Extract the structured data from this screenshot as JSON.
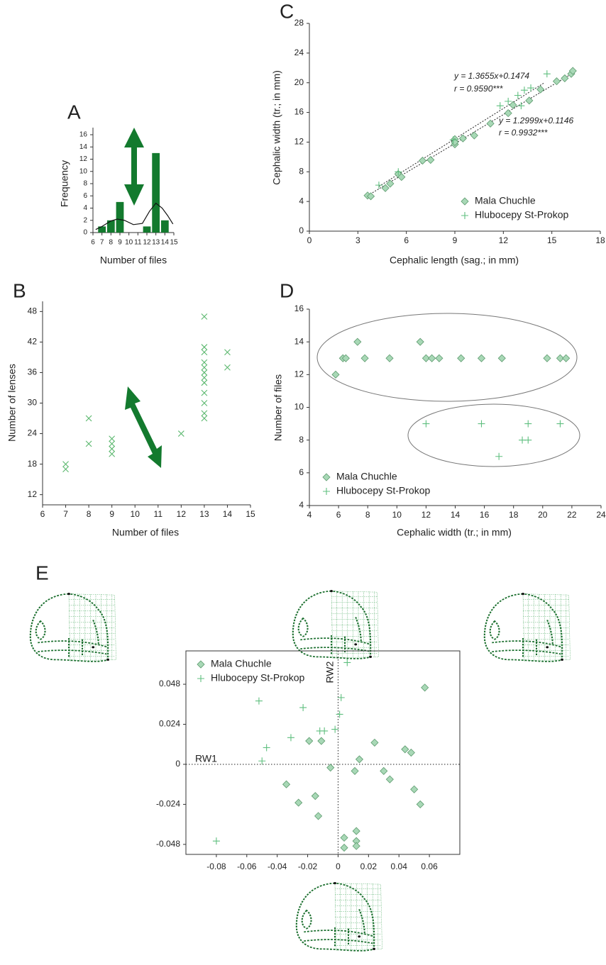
{
  "chart_data": [
    {
      "type": "bar",
      "panel": "A",
      "xlabel": "Number of files",
      "ylabel": "Frequency",
      "x": [
        7,
        8,
        9,
        12,
        13,
        14
      ],
      "values": [
        1,
        2,
        5,
        1,
        13,
        2
      ],
      "color": "#137a2e",
      "curve": {
        "x": [
          6.3,
          7,
          8,
          8.7,
          9.5,
          10.5,
          11.5,
          12.3,
          13,
          13.7,
          14.3,
          14.9
        ],
        "values": [
          0.5,
          1,
          1.9,
          2.2,
          2,
          1.3,
          1.5,
          3.5,
          4.8,
          4,
          2.8,
          1.4
        ],
        "color": "#111111"
      },
      "xlim": [
        6,
        15
      ],
      "xticks": [
        6,
        7,
        8,
        9,
        10,
        11,
        12,
        13,
        14,
        15
      ],
      "ylim": [
        0,
        16
      ],
      "yticks": [
        0,
        2,
        4,
        6,
        8,
        10,
        12,
        14,
        16
      ]
    },
    {
      "type": "scatter",
      "panel": "B",
      "xlabel": "Number of files",
      "ylabel": "Number of lenses",
      "marker": "x",
      "color": "#5cb86f",
      "x": [
        7,
        7,
        8,
        8,
        9,
        9,
        9,
        9,
        12,
        13,
        13,
        13,
        13,
        13,
        13,
        13,
        13,
        13,
        13,
        13,
        13,
        14,
        14
      ],
      "values": [
        18,
        17,
        27,
        22,
        23,
        22,
        21,
        20,
        24,
        47,
        41,
        40,
        38,
        37,
        36,
        35,
        34,
        32,
        30,
        28,
        27,
        40,
        37
      ],
      "xlim": [
        6,
        15
      ],
      "xticks": [
        6,
        7,
        8,
        9,
        10,
        11,
        12,
        13,
        14,
        15
      ],
      "ylim": [
        10,
        50
      ],
      "yticks": [
        12,
        18,
        24,
        30,
        36,
        42,
        48
      ]
    },
    {
      "type": "scatter",
      "panel": "C",
      "xlabel": "Cephalic length (sag.; in mm)",
      "ylabel": "Cephalic width (tr.; in mm)",
      "legend": "bottom-right",
      "series": [
        {
          "name": "Mala Chuchle",
          "marker": "diamond",
          "color": "#a8d8b6",
          "x": [
            3.6,
            3.8,
            4.7,
            5,
            5.5,
            5.7,
            7,
            7.5,
            9,
            9,
            9,
            9.5,
            10.2,
            11.2,
            12.3,
            12.6,
            13.6,
            14.3,
            15.3,
            15.8,
            16.2,
            16.3
          ],
          "values": [
            4.8,
            4.7,
            5.8,
            6.4,
            7.7,
            7.3,
            9.5,
            9.6,
            12.4,
            11.7,
            12,
            12.5,
            12.9,
            14.5,
            15.9,
            17,
            17.6,
            19.1,
            20.2,
            20.6,
            21.2,
            21.6
          ]
        },
        {
          "name": "Hlubocepy St-Prokop",
          "marker": "plus",
          "color": "#5fbf7f",
          "x": [
            4.3,
            5.5,
            8.9,
            11.8,
            12.3,
            12.9,
            13.3,
            13.7,
            14.7,
            13.1
          ],
          "values": [
            6.2,
            8,
            12.3,
            16.9,
            17.5,
            18.3,
            19,
            19.3,
            21.2,
            16.9
          ]
        }
      ],
      "trendlines": [
        {
          "x": [
            4.3,
            14.5
          ],
          "values": [
            6.02,
            19.95
          ]
        },
        {
          "x": [
            3.6,
            16.3
          ],
          "values": [
            4.79,
            21.3
          ]
        }
      ],
      "annotations": [
        "y = 1.3655x+0.1474",
        "r = 0.9590***",
        "y = 1.2999x+0.1146",
        "r = 0.9932***"
      ],
      "xlim": [
        0,
        18
      ],
      "xticks": [
        0,
        3,
        6,
        9,
        12,
        15,
        18
      ],
      "ylim": [
        0,
        28
      ],
      "yticks": [
        0,
        4,
        8,
        12,
        16,
        20,
        24,
        28
      ]
    },
    {
      "type": "scatter",
      "panel": "D",
      "xlabel": "Cephalic width (tr.; in mm)",
      "ylabel": "Number of files",
      "legend": "bottom-left",
      "series": [
        {
          "name": "Mala Chuchle",
          "marker": "diamond",
          "color": "#a8d8b6",
          "x": [
            5.8,
            6.3,
            6.5,
            7.3,
            7.8,
            9.5,
            11.6,
            12,
            12.4,
            12.9,
            14.4,
            15.8,
            17.2,
            20.3,
            21.2,
            21.6
          ],
          "values": [
            12,
            13,
            13,
            14,
            13,
            13,
            14,
            13,
            13,
            13,
            13,
            13,
            13,
            13,
            13,
            13
          ]
        },
        {
          "name": "Hlubocepy St-Prokop",
          "marker": "plus",
          "color": "#5fbf7f",
          "x": [
            12,
            15.8,
            17,
            18.6,
            19,
            19,
            21.2
          ],
          "values": [
            9,
            9,
            7,
            8,
            8,
            9,
            9
          ]
        }
      ],
      "xlim": [
        4,
        24
      ],
      "xticks": [
        4,
        6,
        8,
        10,
        12,
        14,
        16,
        18,
        20,
        22,
        24
      ],
      "ylim": [
        4,
        16
      ],
      "yticks": [
        4,
        6,
        8,
        10,
        12,
        14,
        16
      ]
    },
    {
      "type": "scatter",
      "panel": "E",
      "xlabel": "RW1",
      "ylabel": "RW2",
      "legend": "top-left",
      "frame": true,
      "zero_lines": true,
      "series": [
        {
          "name": "Mala Chuchle",
          "marker": "diamond",
          "color": "#a8d8b6",
          "x": [
            0.057,
            -0.034,
            -0.026,
            -0.015,
            -0.013,
            -0.019,
            -0.011,
            -0.005,
            0.011,
            0.014,
            0.024,
            0.03,
            0.034,
            0.044,
            0.048,
            0.05,
            0.054,
            0.012,
            0.012,
            0.012,
            0.004,
            0.004
          ],
          "values": [
            0.046,
            -0.012,
            -0.023,
            -0.019,
            -0.031,
            0.014,
            0.014,
            -0.002,
            -0.004,
            0.003,
            0.013,
            -0.004,
            -0.009,
            0.009,
            0.007,
            -0.015,
            -0.024,
            -0.04,
            -0.046,
            -0.049,
            -0.044,
            -0.05
          ]
        },
        {
          "name": "Hlubocepy St-Prokop",
          "marker": "plus",
          "color": "#5fbf7f",
          "x": [
            -0.052,
            -0.05,
            -0.047,
            -0.031,
            -0.023,
            -0.009,
            -0.012,
            -0.002,
            0.002,
            0.006,
            -0.08,
            0.001
          ],
          "values": [
            0.038,
            0.002,
            0.01,
            0.016,
            0.034,
            0.02,
            0.02,
            0.021,
            0.04,
            0.061,
            -0.046,
            0.03
          ]
        }
      ],
      "xlim": [
        -0.1,
        0.08
      ],
      "xticks": [
        -0.08,
        -0.06,
        -0.04,
        -0.02,
        0,
        0.02,
        0.04,
        0.06
      ],
      "ylim": [
        -0.054,
        0.068
      ],
      "yticks": [
        -0.048,
        -0.024,
        0,
        0.024,
        0.048
      ]
    }
  ]
}
